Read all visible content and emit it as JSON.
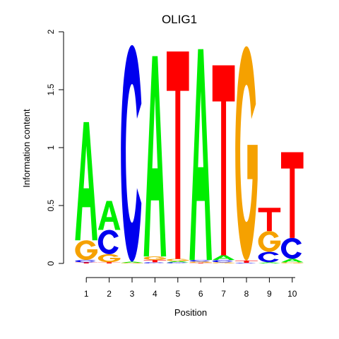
{
  "chart_data": {
    "type": "sequence-logo",
    "title": "OLIG1",
    "xlabel": "Position",
    "ylabel": "Information content",
    "ylim": [
      0,
      2
    ],
    "yticks": [
      "0",
      "0.5",
      "1",
      "1.5",
      "2"
    ],
    "positions": [
      "1",
      "2",
      "3",
      "4",
      "5",
      "6",
      "7",
      "8",
      "9",
      "10"
    ],
    "colors": {
      "A": "#00ee00",
      "C": "#0000ee",
      "G": "#f5a100",
      "T": "#ff0000"
    },
    "stacks": [
      [
        {
          "base": "T",
          "height": 0.01
        },
        {
          "base": "C",
          "height": 0.02
        },
        {
          "base": "G",
          "height": 0.17
        },
        {
          "base": "A",
          "height": 1.02
        }
      ],
      [
        {
          "base": "T",
          "height": 0.01
        },
        {
          "base": "G",
          "height": 0.07
        },
        {
          "base": "C",
          "height": 0.21
        },
        {
          "base": "A",
          "height": 0.25
        }
      ],
      [
        {
          "base": "G",
          "height": 0.005
        },
        {
          "base": "A",
          "height": 0.01
        },
        {
          "base": "C",
          "height": 1.87
        }
      ],
      [
        {
          "base": "C",
          "height": 0.01
        },
        {
          "base": "T",
          "height": 0.02
        },
        {
          "base": "G",
          "height": 0.03
        },
        {
          "base": "A",
          "height": 1.73
        }
      ],
      [
        {
          "base": "C",
          "height": 0.01
        },
        {
          "base": "A",
          "height": 0.01
        },
        {
          "base": "G",
          "height": 0.02
        },
        {
          "base": "T",
          "height": 1.79
        }
      ],
      [
        {
          "base": "T",
          "height": 0.005
        },
        {
          "base": "G",
          "height": 0.01
        },
        {
          "base": "C",
          "height": 0.015
        },
        {
          "base": "A",
          "height": 1.82
        }
      ],
      [
        {
          "base": "G",
          "height": 0.01
        },
        {
          "base": "C",
          "height": 0.02
        },
        {
          "base": "A",
          "height": 0.04
        },
        {
          "base": "T",
          "height": 1.64
        }
      ],
      [
        {
          "base": "C",
          "height": 0.005
        },
        {
          "base": "T",
          "height": 0.02
        },
        {
          "base": "G",
          "height": 1.85
        }
      ],
      [
        {
          "base": "A",
          "height": 0.01
        },
        {
          "base": "C",
          "height": 0.09
        },
        {
          "base": "G",
          "height": 0.18
        },
        {
          "base": "T",
          "height": 0.2
        }
      ],
      [
        {
          "base": "G",
          "height": 0.01
        },
        {
          "base": "A",
          "height": 0.03
        },
        {
          "base": "C",
          "height": 0.18
        },
        {
          "base": "T",
          "height": 0.74
        }
      ]
    ]
  }
}
